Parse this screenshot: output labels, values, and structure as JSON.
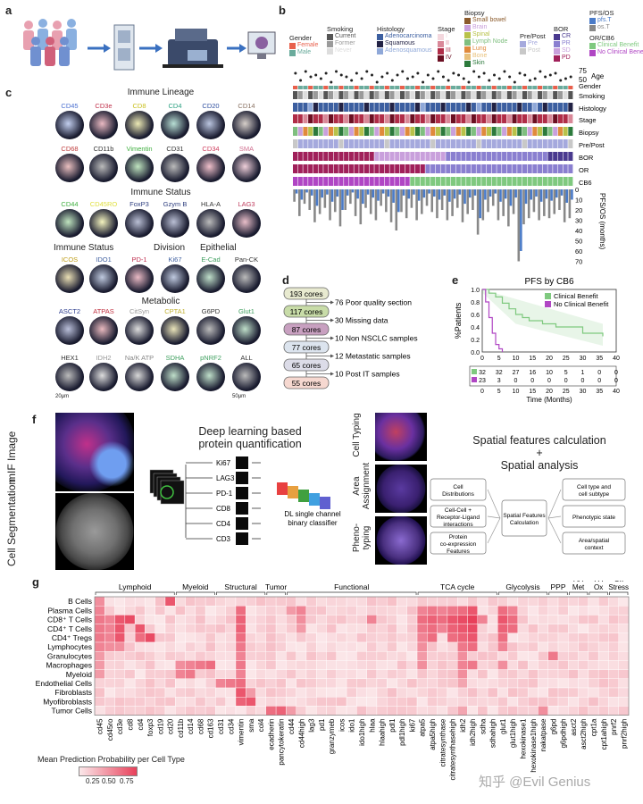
{
  "panel_labels": {
    "a": "a",
    "b": "b",
    "c": "c",
    "d": "d",
    "e": "e",
    "f": "f",
    "g": "g"
  },
  "panel_b": {
    "legend": {
      "gender": {
        "title": "Gender",
        "items": [
          {
            "label": "Female",
            "color": "#e8604c"
          },
          {
            "label": "Male",
            "color": "#6aab9c"
          }
        ]
      },
      "smoking": {
        "title": "Smoking",
        "items": [
          {
            "label": "Current",
            "color": "#555555"
          },
          {
            "label": "Former",
            "color": "#9a9a9a"
          },
          {
            "label": "Never",
            "color": "#dddddd"
          }
        ]
      },
      "histology": {
        "title": "Histology",
        "items": [
          {
            "label": "Adenocarcinoma",
            "color": "#3c5fa0"
          },
          {
            "label": "Squamous",
            "color": "#222244"
          },
          {
            "label": "Adenosquamous",
            "color": "#8fa8d8"
          }
        ]
      },
      "stage": {
        "title": "Stage",
        "items": [
          {
            "label": "I",
            "color": "#f3d7dd"
          },
          {
            "label": "II",
            "color": "#d98898"
          },
          {
            "label": "III",
            "color": "#b02d48"
          },
          {
            "label": "IV",
            "color": "#6b0f22"
          }
        ]
      },
      "biopsy": {
        "title": "Biopsy",
        "items": [
          {
            "label": "Small bowel",
            "color": "#8b5a2b"
          },
          {
            "label": "Brain",
            "color": "#c9a0dc"
          },
          {
            "label": "Spinal",
            "color": "#b8c24a"
          },
          {
            "label": "Lymph Node",
            "color": "#7fbf7f"
          },
          {
            "label": "Lung",
            "color": "#e08a3c"
          },
          {
            "label": "Bone",
            "color": "#e8c07a"
          },
          {
            "label": "Skin",
            "color": "#2c7a3c"
          }
        ]
      },
      "prepost": {
        "title": "Pre/Post",
        "items": [
          {
            "label": "Pre",
            "color": "#a5a9dd"
          },
          {
            "label": "Post",
            "color": "#c8c8c8"
          }
        ]
      },
      "bor": {
        "title": "BOR",
        "items": [
          {
            "label": "CR",
            "color": "#4a3a8f"
          },
          {
            "label": "PR",
            "color": "#8a7fd0"
          },
          {
            "label": "SD",
            "color": "#c9a0dc"
          },
          {
            "label": "PD",
            "color": "#a0205a"
          }
        ]
      },
      "pfsos": {
        "title": "PFS/OS",
        "items": [
          {
            "label": "pfs.T",
            "color": "#4a7bc8"
          },
          {
            "label": "os.T",
            "color": "#888888"
          }
        ]
      },
      "orcb6": {
        "title": "OR/CB6",
        "items": [
          {
            "label": "Clinical Benefit",
            "color": "#7fc97f"
          },
          {
            "label": "No Clinical Benefit",
            "color": "#b046c4"
          }
        ]
      }
    },
    "row_labels": [
      "Age",
      "Gender",
      "Smoking",
      "Histology",
      "Stage",
      "Biopsy",
      "Pre/Post",
      "BOR",
      "OR",
      "CB6",
      "PFS/OS (months)"
    ],
    "age_ticks": [
      "75",
      "50"
    ],
    "pfs_ticks": [
      "0",
      "10",
      "20",
      "30",
      "40",
      "50",
      "60",
      "70"
    ]
  },
  "panel_c": {
    "sections": [
      "Immune Lineage",
      "Immune Status",
      "Immune Status",
      "Division",
      "Epithelial",
      "Metabolic"
    ],
    "row1": [
      {
        "label": "CD45",
        "color": "#4a6fd0"
      },
      {
        "label": "CD3e",
        "color": "#c0304a"
      },
      {
        "label": "CD8",
        "color": "#c9c020"
      },
      {
        "label": "CD4",
        "color": "#2aa080"
      },
      {
        "label": "CD20",
        "color": "#3050a0"
      },
      {
        "label": "CD14",
        "color": "#887060"
      }
    ],
    "row2": [
      {
        "label": "CD68",
        "color": "#c04040"
      },
      {
        "label": "CD11b",
        "color": "#333333"
      },
      {
        "label": "Vimentin",
        "color": "#40b040"
      },
      {
        "label": "CD31",
        "color": "#333333"
      },
      {
        "label": "CD34",
        "color": "#d04060"
      },
      {
        "label": "SMA",
        "color": "#d07090"
      }
    ],
    "row3": [
      {
        "label": "CD44",
        "color": "#40b040"
      },
      {
        "label": "CD45RO",
        "color": "#e0e040"
      },
      {
        "label": "FoxP3",
        "color": "#304080"
      },
      {
        "label": "Gzym B",
        "color": "#304080"
      },
      {
        "label": "HLA-A",
        "color": "#333333"
      },
      {
        "label": "LAG3",
        "color": "#c04060"
      }
    ],
    "row4": [
      {
        "label": "ICOS",
        "color": "#c0a020"
      },
      {
        "label": "IDO1",
        "color": "#4060a0"
      },
      {
        "label": "PD-1",
        "color": "#c03050"
      },
      {
        "label": "Ki67",
        "color": "#4060a0"
      },
      {
        "label": "E-Cad",
        "color": "#40a060"
      },
      {
        "label": "Pan-CK",
        "color": "#333333"
      }
    ],
    "row5": [
      {
        "label": "ASCT2",
        "color": "#304090"
      },
      {
        "label": "ATPAS",
        "color": "#c03040"
      },
      {
        "label": "CitSyn",
        "color": "#999999"
      },
      {
        "label": "CPTA1",
        "color": "#c0b030"
      },
      {
        "label": "G6PD",
        "color": "#333333"
      },
      {
        "label": "Glut1",
        "color": "#40a060"
      }
    ],
    "row6": [
      {
        "label": "HEX1",
        "color": "#333333"
      },
      {
        "label": "IDH2",
        "color": "#999999"
      },
      {
        "label": "Na/K ATP",
        "color": "#888888"
      },
      {
        "label": "SDHA",
        "color": "#40a060"
      },
      {
        "label": "pNRF2",
        "color": "#40a060"
      },
      {
        "label": "ALL",
        "color": "#333333"
      }
    ],
    "scale_left": "20μm",
    "scale_right": "50μm"
  },
  "panel_d": {
    "cores": [
      "193 cores",
      "117 cores",
      "87 cores",
      "77 cores",
      "65 cores",
      "55 cores"
    ],
    "removed": [
      "76 Poor quality section",
      "30 Missing data",
      "10 Non NSCLC samples",
      "12 Metastatic samples",
      "10 Post IT samples"
    ]
  },
  "panel_e": {
    "title": "PFS by CB6",
    "ylabel": "%Patients",
    "xlabel": "Time (Months)",
    "legend": [
      {
        "label": "Clinical Benefit",
        "color": "#7fc97f"
      },
      {
        "label": "No Clinical Benefit",
        "color": "#b046c4"
      }
    ],
    "x_ticks": [
      "0",
      "5",
      "10",
      "15",
      "20",
      "25",
      "30",
      "35",
      "40"
    ],
    "y_ticks": [
      "0.0",
      "0.2",
      "0.4",
      "0.6",
      "0.8",
      "1.0"
    ],
    "risk_table": {
      "cb": [
        "32",
        "32",
        "27",
        "16",
        "10",
        "5",
        "1",
        "0",
        "0"
      ],
      "ncb": [
        "23",
        "3",
        "0",
        "0",
        "0",
        "0",
        "0",
        "0",
        "0"
      ]
    }
  },
  "panel_f": {
    "mif_label": "mIF Image",
    "seg_label": "Cell Segmentation",
    "dl_title_1": "Deep learning based",
    "dl_title_2": "protein quantification",
    "markers": [
      "Ki67",
      "LAG3",
      "PD-1",
      "CD8",
      "CD4",
      "CD3"
    ],
    "classifier_1": "DL single channel",
    "classifier_2": "binary classifier",
    "side_labels": [
      "Cell Typing",
      "Area Assignment",
      "Pheno-typing"
    ],
    "spatial_title_1": "Spatial features calculation",
    "spatial_title_2": "+",
    "spatial_title_3": "Spatial analysis",
    "left_boxes": [
      "Cell Distributions",
      "Cell-Cell + Receptor-Ligand interactions",
      "Protein co-expression Features"
    ],
    "center_box": "Spatial Features Calculation",
    "right_boxes": [
      "Cell type and cell subtype",
      "Phenotypic state",
      "Area/spatial context"
    ]
  },
  "panel_g": {
    "groups": [
      "Lymphoid",
      "Myeloid",
      "Structural",
      "Tumor",
      "Functional",
      "TCA cycle",
      "Glycolysis",
      "PPP",
      "AA Met",
      "FA Ox",
      "Ox Stress"
    ],
    "rows": [
      "B Cells",
      "Plasma Cells",
      "CD8⁺ T Cells",
      "CD4⁺ T Cells",
      "CD4⁺ Tregs",
      "Lymphocytes",
      "Granulocytes",
      "Macrophages",
      "Myeloid",
      "Endothelial Cells",
      "Fibroblasts",
      "Myofibroblasts",
      "Tumor Cells"
    ],
    "cols": [
      "cd45",
      "cd45ro",
      "cd3e",
      "cd8",
      "cd4",
      "foxp3",
      "cd19",
      "cd20",
      "cd11b",
      "cd14",
      "cd68",
      "cd163",
      "cd31",
      "cd34",
      "vimentin",
      "sma",
      "col4",
      "ecadherin",
      "pancytokeratin",
      "cd44",
      "cd44high",
      "lag3",
      "pd1",
      "granzymeb",
      "icos",
      "ido1",
      "ido1high",
      "hlaa",
      "hlaahigh",
      "pdl1",
      "pdl1high",
      "ki67",
      "atpa5",
      "atpa5high",
      "citratesynthase",
      "citratesynthasehigh",
      "idh2",
      "idh2high",
      "sdha",
      "sdhahigh",
      "glut1",
      "glut1high",
      "hexokinase1",
      "hexokinase1high",
      "nakatpase",
      "g6pd",
      "g6pdhigh",
      "asct2",
      "asct2high",
      "cpt1a",
      "cpt1ahigh",
      "pnrf2",
      "pnrf2high"
    ],
    "colorbar_title": "Mean Prediction Probability per Cell Type",
    "colorbar_ticks": [
      "0.25",
      "0.50",
      "0.75"
    ],
    "watermark": "知乎 @Evil Genius"
  }
}
